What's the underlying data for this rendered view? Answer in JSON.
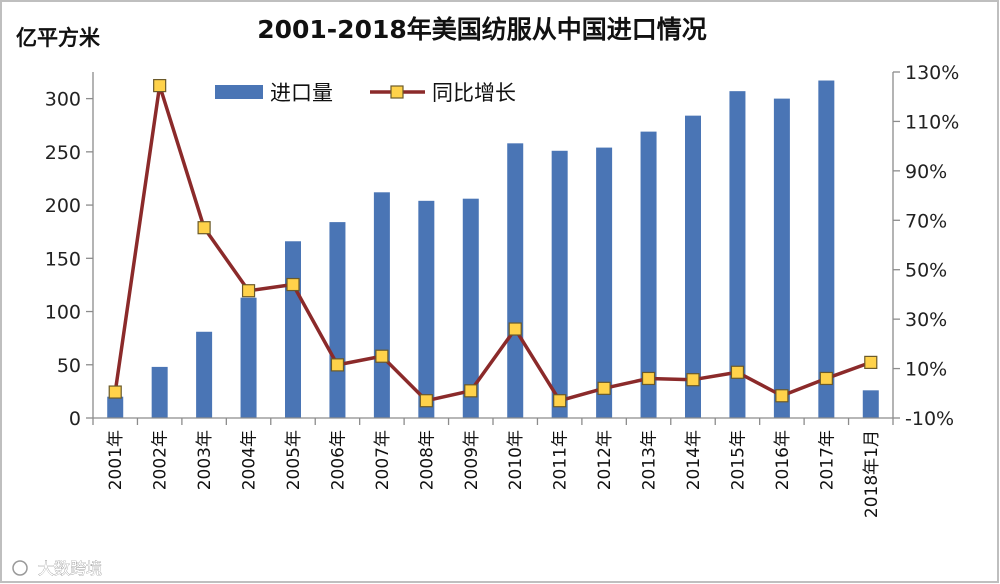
{
  "chart_data": {
    "type": "bar",
    "title": "2001-2018年美国纺服从中国进口情况",
    "ylabel": "亿平方米",
    "categories": [
      "2001年",
      "2002年",
      "2003年",
      "2004年",
      "2005年",
      "2006年",
      "2007年",
      "2008年",
      "2009年",
      "2010年",
      "2011年",
      "2012年",
      "2013年",
      "2014年",
      "2015年",
      "2016年",
      "2017年",
      "2018年1月"
    ],
    "series": [
      {
        "name": "进口量",
        "type": "bar",
        "axis": "left",
        "values": [
          20,
          48,
          81,
          113,
          166,
          184,
          212,
          204,
          206,
          258,
          251,
          254,
          269,
          284,
          307,
          300,
          317,
          26
        ]
      },
      {
        "name": "同比增长",
        "type": "line",
        "axis": "right",
        "unit": "%",
        "values": [
          0.5,
          124.5,
          67,
          41.5,
          44,
          11.5,
          15,
          -3,
          1,
          26,
          -3,
          2,
          6,
          5.5,
          8.5,
          -1,
          6,
          12.5
        ]
      }
    ],
    "ylim": [
      0,
      325
    ],
    "y_ticks": [
      "0",
      "50",
      "100",
      "150",
      "200",
      "250",
      "300"
    ],
    "y2lim": [
      -10,
      130
    ],
    "y2_ticks": [
      "-10%",
      "10%",
      "30%",
      "50%",
      "70%",
      "90%",
      "110%",
      "130%"
    ],
    "legend_position": "top"
  },
  "watermark": {
    "text": "大数跨境"
  }
}
